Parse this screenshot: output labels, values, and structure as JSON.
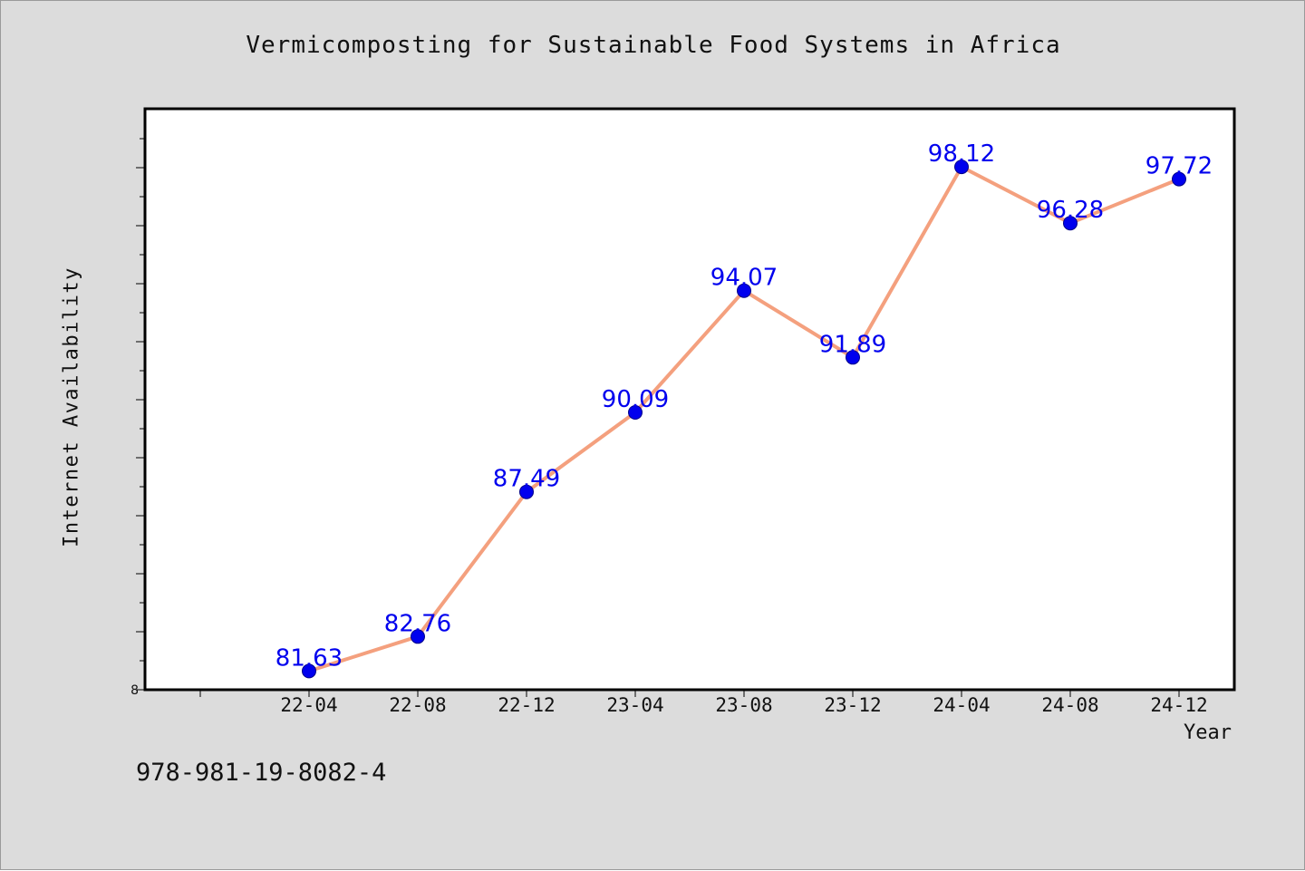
{
  "footnote": "978-981-19-8082-4",
  "chart_data": {
    "type": "line",
    "title": "Vermicomposting for Sustainable Food Systems in Africa",
    "xlabel": "Year",
    "ylabel": "Internet Availability",
    "categories": [
      "22-04",
      "22-08",
      "22-12",
      "23-04",
      "23-08",
      "23-12",
      "24-04",
      "24-08",
      "24-12"
    ],
    "values": [
      81.63,
      82.76,
      87.49,
      90.09,
      94.07,
      91.89,
      98.12,
      96.28,
      97.72
    ],
    "y_tick_labels": [
      "8"
    ],
    "ylim": [
      81.02,
      100.02
    ],
    "grid": false,
    "legend": "none",
    "colors": {
      "line": "#f4a07e",
      "marker": "#0000ee",
      "data_label": "#0000ee",
      "figure_background": "#dcdcdc",
      "plot_background": "#ffffff"
    }
  }
}
